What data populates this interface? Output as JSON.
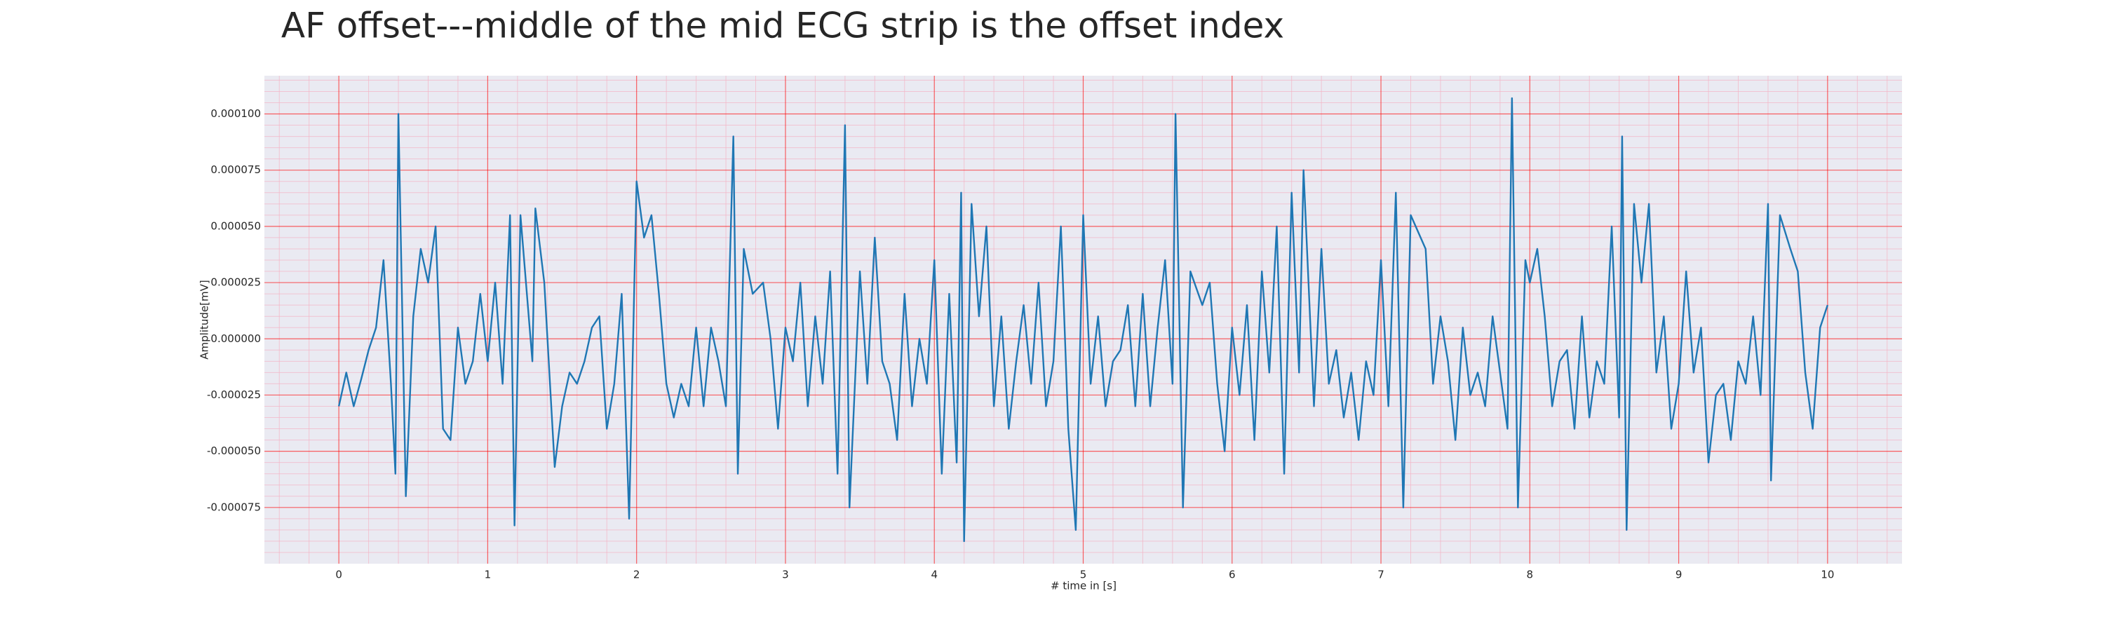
{
  "chart_data": {
    "type": "line",
    "title": "AF offset---middle of the mid ECG strip is the offset index",
    "xlabel": "# time in [s]",
    "ylabel": "Amplitude[mV]",
    "color": "#1f77b4",
    "background": "#eaeaf2",
    "grid": true,
    "grid_color": "#ff0000",
    "minor_grid": true,
    "minor_grid_color": "#f4b4c4",
    "minor_divisions": 5,
    "xlim": [
      -0.5,
      10.5
    ],
    "ylim": [
      -0.0001,
      0.000117
    ],
    "xticks": [
      0,
      1,
      2,
      3,
      4,
      5,
      6,
      7,
      8,
      9,
      10
    ],
    "yticks": [
      {
        "value": -7.5e-05,
        "label": "-0.000075"
      },
      {
        "value": -5e-05,
        "label": "-0.000050"
      },
      {
        "value": -2.5e-05,
        "label": "-0.000025"
      },
      {
        "value": 0,
        "label": "0.000000"
      },
      {
        "value": 2.5e-05,
        "label": "0.000025"
      },
      {
        "value": 5e-05,
        "label": "0.000050"
      },
      {
        "value": 7.5e-05,
        "label": "0.000075"
      },
      {
        "value": 0.0001,
        "label": "0.000100"
      }
    ],
    "x": [
      0,
      0.05,
      0.1,
      0.15,
      0.2,
      0.25,
      0.3,
      0.35,
      0.38,
      0.4,
      0.45,
      0.5,
      0.55,
      0.6,
      0.65,
      0.7,
      0.75,
      0.8,
      0.85,
      0.9,
      0.95,
      1.0,
      1.05,
      1.1,
      1.15,
      1.18,
      1.22,
      1.3,
      1.32,
      1.38,
      1.45,
      1.5,
      1.55,
      1.6,
      1.65,
      1.7,
      1.75,
      1.8,
      1.85,
      1.9,
      1.95,
      2.0,
      2.05,
      2.1,
      2.15,
      2.2,
      2.25,
      2.3,
      2.35,
      2.4,
      2.45,
      2.5,
      2.55,
      2.6,
      2.65,
      2.68,
      2.72,
      2.78,
      2.85,
      2.9,
      2.95,
      3.0,
      3.05,
      3.1,
      3.15,
      3.2,
      3.25,
      3.3,
      3.35,
      3.4,
      3.43,
      3.5,
      3.55,
      3.6,
      3.65,
      3.7,
      3.75,
      3.8,
      3.85,
      3.9,
      3.95,
      4.0,
      4.05,
      4.1,
      4.15,
      4.18,
      4.2,
      4.25,
      4.3,
      4.35,
      4.4,
      4.45,
      4.5,
      4.55,
      4.6,
      4.65,
      4.7,
      4.75,
      4.8,
      4.85,
      4.9,
      4.95,
      5.0,
      5.05,
      5.1,
      5.15,
      5.2,
      5.25,
      5.3,
      5.35,
      5.4,
      5.45,
      5.5,
      5.55,
      5.6,
      5.62,
      5.67,
      5.72,
      5.8,
      5.85,
      5.9,
      5.95,
      6.0,
      6.05,
      6.1,
      6.15,
      6.2,
      6.25,
      6.3,
      6.35,
      6.4,
      6.45,
      6.48,
      6.55,
      6.6,
      6.65,
      6.7,
      6.75,
      6.8,
      6.85,
      6.9,
      6.95,
      7.0,
      7.05,
      7.1,
      7.15,
      7.2,
      7.3,
      7.35,
      7.4,
      7.45,
      7.5,
      7.55,
      7.6,
      7.65,
      7.7,
      7.75,
      7.8,
      7.85,
      7.88,
      7.92,
      7.97,
      8.0,
      8.05,
      8.1,
      8.15,
      8.2,
      8.25,
      8.3,
      8.35,
      8.4,
      8.45,
      8.5,
      8.55,
      8.6,
      8.62,
      8.65,
      8.7,
      8.75,
      8.8,
      8.85,
      8.9,
      8.95,
      9.0,
      9.05,
      9.1,
      9.15,
      9.2,
      9.25,
      9.3,
      9.35,
      9.4,
      9.45,
      9.5,
      9.55,
      9.6,
      9.62,
      9.68,
      9.75,
      9.8,
      9.85,
      9.9,
      9.95,
      10.0
    ],
    "values": [
      -3e-05,
      -1.5e-05,
      -3e-05,
      -1.8e-05,
      -5e-06,
      5e-06,
      3.5e-05,
      -2e-05,
      -6e-05,
      0.0001,
      -7e-05,
      1e-05,
      4e-05,
      2.5e-05,
      5e-05,
      -4e-05,
      -4.5e-05,
      5e-06,
      -2e-05,
      -1e-05,
      2e-05,
      -1e-05,
      2.5e-05,
      -2e-05,
      5.5e-05,
      -8.3e-05,
      5.5e-05,
      -1e-05,
      5.8e-05,
      2.5e-05,
      -5.7e-05,
      -3e-05,
      -1.5e-05,
      -2e-05,
      -1e-05,
      5e-06,
      1e-05,
      -4e-05,
      -2e-05,
      2e-05,
      -8e-05,
      7e-05,
      4.5e-05,
      5.5e-05,
      2e-05,
      -2e-05,
      -3.5e-05,
      -2e-05,
      -3e-05,
      5e-06,
      -3e-05,
      5e-06,
      -1e-05,
      -3e-05,
      9e-05,
      -6e-05,
      4e-05,
      2e-05,
      2.5e-05,
      0,
      -4e-05,
      5e-06,
      -1e-05,
      2.5e-05,
      -3e-05,
      1e-05,
      -2e-05,
      3e-05,
      -6e-05,
      9.5e-05,
      -7.5e-05,
      3e-05,
      -2e-05,
      4.5e-05,
      -1e-05,
      -2e-05,
      -4.5e-05,
      2e-05,
      -3e-05,
      0,
      -2e-05,
      3.5e-05,
      -6e-05,
      2e-05,
      -5.5e-05,
      6.5e-05,
      -9e-05,
      6e-05,
      1e-05,
      5e-05,
      -3e-05,
      1e-05,
      -4e-05,
      -1e-05,
      1.5e-05,
      -2e-05,
      2.5e-05,
      -3e-05,
      -1e-05,
      5e-05,
      -4e-05,
      -8.5e-05,
      5.5e-05,
      -2e-05,
      1e-05,
      -3e-05,
      -1e-05,
      -5e-06,
      1.5e-05,
      -3e-05,
      2e-05,
      -3e-05,
      5e-06,
      3.5e-05,
      -2e-05,
      0.0001,
      -7.5e-05,
      3e-05,
      1.5e-05,
      2.5e-05,
      -2e-05,
      -5e-05,
      5e-06,
      -2.5e-05,
      1.5e-05,
      -4.5e-05,
      3e-05,
      -1.5e-05,
      5e-05,
      -6e-05,
      6.5e-05,
      -1.5e-05,
      7.5e-05,
      -3e-05,
      4e-05,
      -2e-05,
      -5e-06,
      -3.5e-05,
      -1.5e-05,
      -4.5e-05,
      -1e-05,
      -2.5e-05,
      3.5e-05,
      -3e-05,
      6.5e-05,
      -7.5e-05,
      5.5e-05,
      4e-05,
      -2e-05,
      1e-05,
      -1e-05,
      -4.5e-05,
      5e-06,
      -2.5e-05,
      -1.5e-05,
      -3e-05,
      1e-05,
      -1.5e-05,
      -4e-05,
      0.000107,
      -7.5e-05,
      3.5e-05,
      2.5e-05,
      4e-05,
      1e-05,
      -3e-05,
      -1e-05,
      -5e-06,
      -4e-05,
      1e-05,
      -3.5e-05,
      -1e-05,
      -2e-05,
      5e-05,
      -3.5e-05,
      9e-05,
      -8.5e-05,
      6e-05,
      2.5e-05,
      6e-05,
      -1.5e-05,
      1e-05,
      -4e-05,
      -2e-05,
      3e-05,
      -1.5e-05,
      5e-06,
      -5.5e-05,
      -2.5e-05,
      -2e-05,
      -4.5e-05,
      -1e-05,
      -2e-05,
      1e-05,
      -2.5e-05,
      6e-05,
      -6.3e-05,
      5.5e-05,
      4e-05,
      3e-05,
      -1.5e-05,
      -4e-05,
      5e-06,
      1.5e-05
    ]
  }
}
